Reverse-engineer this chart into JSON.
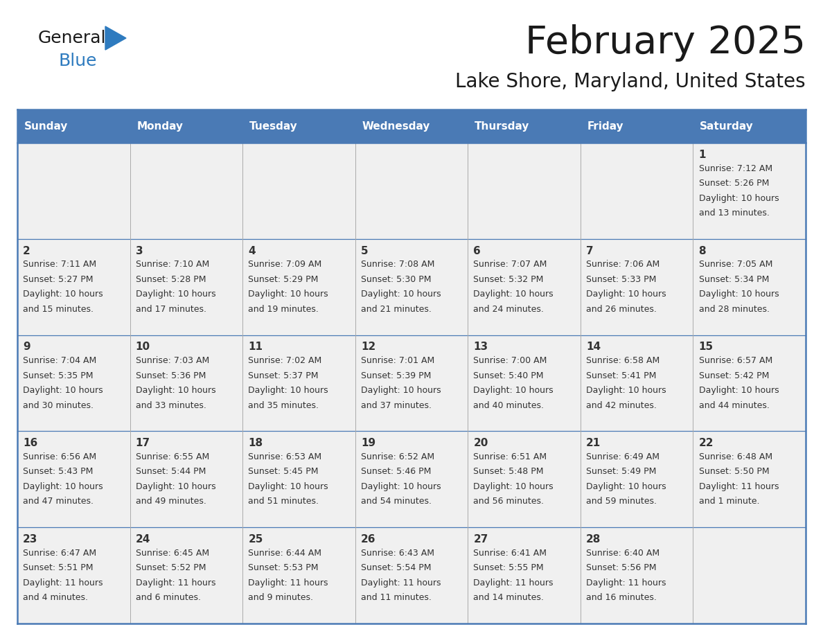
{
  "title": "February 2025",
  "subtitle": "Lake Shore, Maryland, United States",
  "header_color": "#4a7ab5",
  "header_text_color": "#ffffff",
  "day_names": [
    "Sunday",
    "Monday",
    "Tuesday",
    "Wednesday",
    "Thursday",
    "Friday",
    "Saturday"
  ],
  "cell_bg": "#f0f0f0",
  "border_color": "#4a7ab5",
  "text_color": "#333333",
  "calendar": [
    [
      null,
      null,
      null,
      null,
      null,
      null,
      {
        "day": "1",
        "sunrise": "7:12 AM",
        "sunset": "5:26 PM",
        "daylight": "10 hours\nand 13 minutes."
      }
    ],
    [
      {
        "day": "2",
        "sunrise": "7:11 AM",
        "sunset": "5:27 PM",
        "daylight": "10 hours\nand 15 minutes."
      },
      {
        "day": "3",
        "sunrise": "7:10 AM",
        "sunset": "5:28 PM",
        "daylight": "10 hours\nand 17 minutes."
      },
      {
        "day": "4",
        "sunrise": "7:09 AM",
        "sunset": "5:29 PM",
        "daylight": "10 hours\nand 19 minutes."
      },
      {
        "day": "5",
        "sunrise": "7:08 AM",
        "sunset": "5:30 PM",
        "daylight": "10 hours\nand 21 minutes."
      },
      {
        "day": "6",
        "sunrise": "7:07 AM",
        "sunset": "5:32 PM",
        "daylight": "10 hours\nand 24 minutes."
      },
      {
        "day": "7",
        "sunrise": "7:06 AM",
        "sunset": "5:33 PM",
        "daylight": "10 hours\nand 26 minutes."
      },
      {
        "day": "8",
        "sunrise": "7:05 AM",
        "sunset": "5:34 PM",
        "daylight": "10 hours\nand 28 minutes."
      }
    ],
    [
      {
        "day": "9",
        "sunrise": "7:04 AM",
        "sunset": "5:35 PM",
        "daylight": "10 hours\nand 30 minutes."
      },
      {
        "day": "10",
        "sunrise": "7:03 AM",
        "sunset": "5:36 PM",
        "daylight": "10 hours\nand 33 minutes."
      },
      {
        "day": "11",
        "sunrise": "7:02 AM",
        "sunset": "5:37 PM",
        "daylight": "10 hours\nand 35 minutes."
      },
      {
        "day": "12",
        "sunrise": "7:01 AM",
        "sunset": "5:39 PM",
        "daylight": "10 hours\nand 37 minutes."
      },
      {
        "day": "13",
        "sunrise": "7:00 AM",
        "sunset": "5:40 PM",
        "daylight": "10 hours\nand 40 minutes."
      },
      {
        "day": "14",
        "sunrise": "6:58 AM",
        "sunset": "5:41 PM",
        "daylight": "10 hours\nand 42 minutes."
      },
      {
        "day": "15",
        "sunrise": "6:57 AM",
        "sunset": "5:42 PM",
        "daylight": "10 hours\nand 44 minutes."
      }
    ],
    [
      {
        "day": "16",
        "sunrise": "6:56 AM",
        "sunset": "5:43 PM",
        "daylight": "10 hours\nand 47 minutes."
      },
      {
        "day": "17",
        "sunrise": "6:55 AM",
        "sunset": "5:44 PM",
        "daylight": "10 hours\nand 49 minutes."
      },
      {
        "day": "18",
        "sunrise": "6:53 AM",
        "sunset": "5:45 PM",
        "daylight": "10 hours\nand 51 minutes."
      },
      {
        "day": "19",
        "sunrise": "6:52 AM",
        "sunset": "5:46 PM",
        "daylight": "10 hours\nand 54 minutes."
      },
      {
        "day": "20",
        "sunrise": "6:51 AM",
        "sunset": "5:48 PM",
        "daylight": "10 hours\nand 56 minutes."
      },
      {
        "day": "21",
        "sunrise": "6:49 AM",
        "sunset": "5:49 PM",
        "daylight": "10 hours\nand 59 minutes."
      },
      {
        "day": "22",
        "sunrise": "6:48 AM",
        "sunset": "5:50 PM",
        "daylight": "11 hours\nand 1 minute."
      }
    ],
    [
      {
        "day": "23",
        "sunrise": "6:47 AM",
        "sunset": "5:51 PM",
        "daylight": "11 hours\nand 4 minutes."
      },
      {
        "day": "24",
        "sunrise": "6:45 AM",
        "sunset": "5:52 PM",
        "daylight": "11 hours\nand 6 minutes."
      },
      {
        "day": "25",
        "sunrise": "6:44 AM",
        "sunset": "5:53 PM",
        "daylight": "11 hours\nand 9 minutes."
      },
      {
        "day": "26",
        "sunrise": "6:43 AM",
        "sunset": "5:54 PM",
        "daylight": "11 hours\nand 11 minutes."
      },
      {
        "day": "27",
        "sunrise": "6:41 AM",
        "sunset": "5:55 PM",
        "daylight": "11 hours\nand 14 minutes."
      },
      {
        "day": "28",
        "sunrise": "6:40 AM",
        "sunset": "5:56 PM",
        "daylight": "11 hours\nand 16 minutes."
      },
      null
    ]
  ],
  "fig_width": 11.88,
  "fig_height": 9.18,
  "dpi": 100
}
